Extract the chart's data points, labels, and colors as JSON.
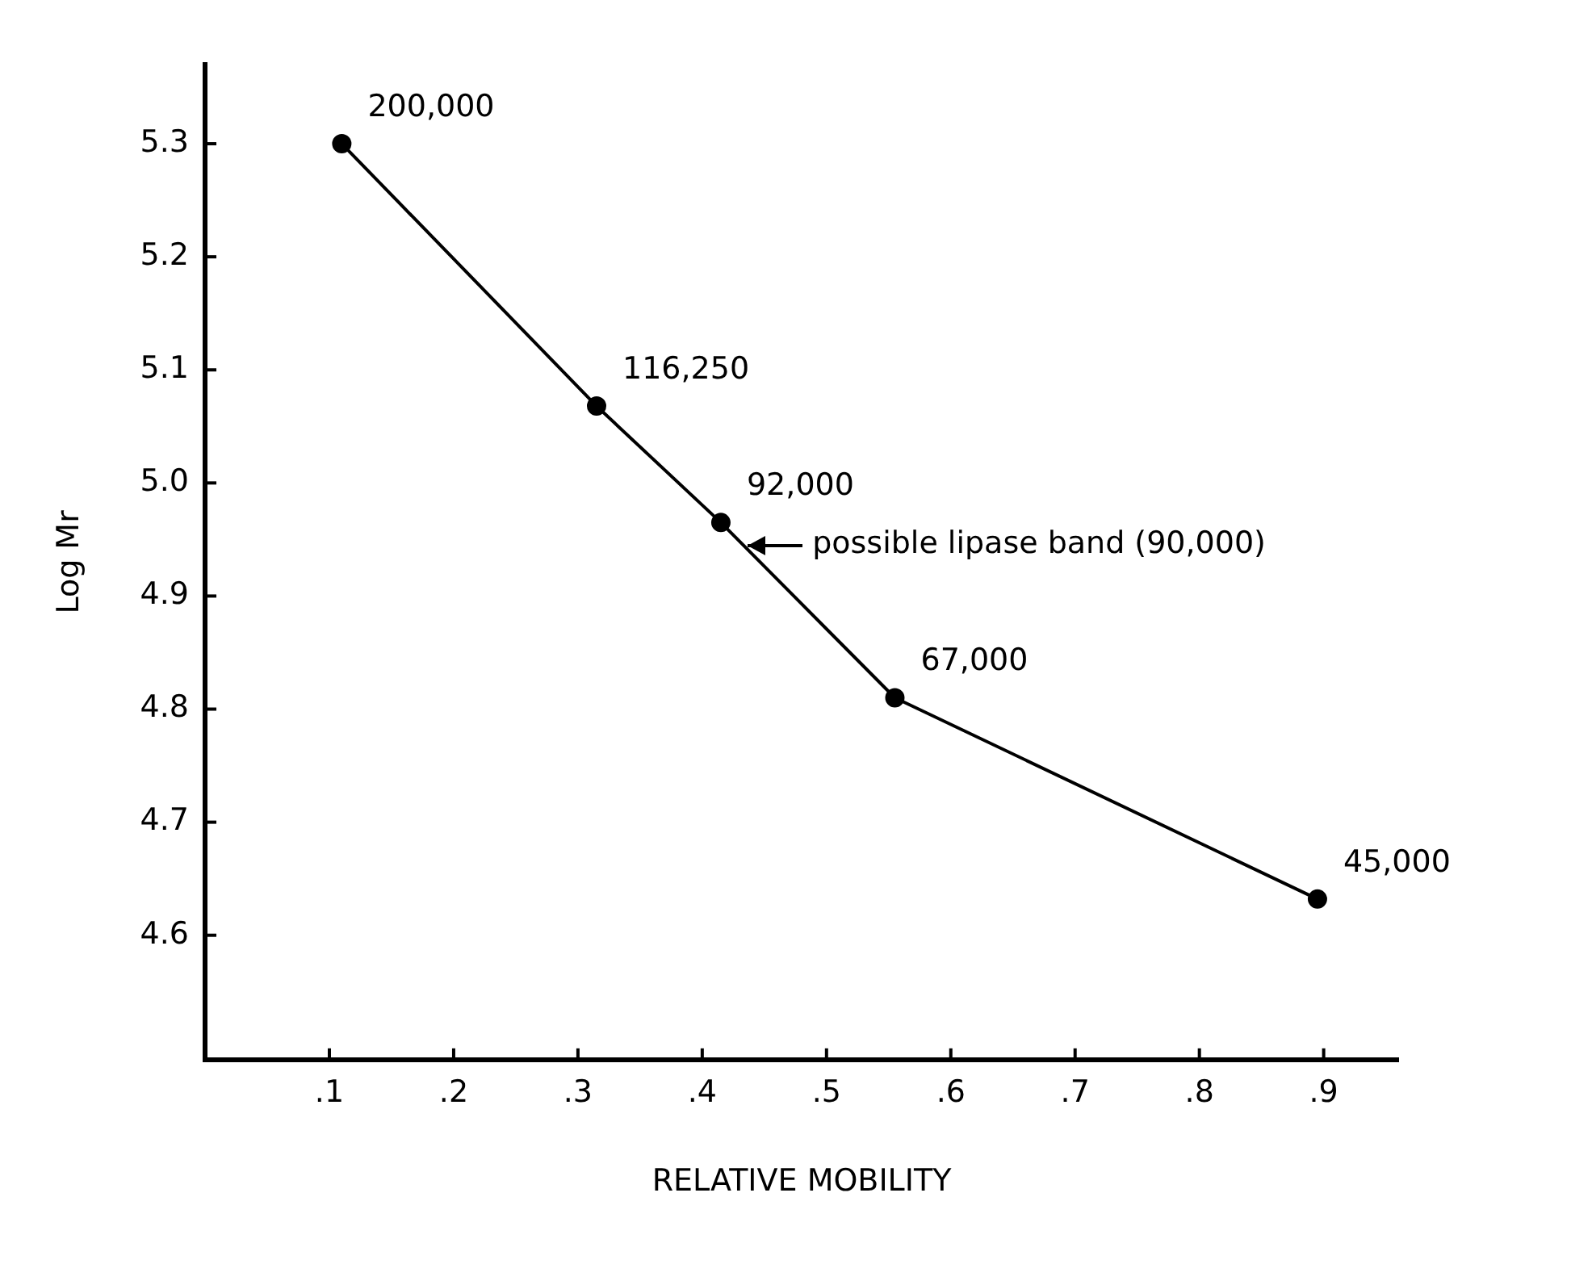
{
  "chart_data": {
    "type": "line",
    "xlabel": "RELATIVE MOBILITY",
    "ylabel": "Log Mr",
    "x": [
      0.11,
      0.315,
      0.415,
      0.555,
      0.895
    ],
    "series": [
      {
        "color": "#000000",
        "values": [
          5.3,
          5.068,
          4.965,
          4.81,
          4.632
        ]
      }
    ],
    "xlim": [
      0,
      0.96
    ],
    "ylim": [
      4.49,
      5.37
    ],
    "xticks": [
      {
        "value": 0.1,
        "label": ".1"
      },
      {
        "value": 0.2,
        "label": ".2"
      },
      {
        "value": 0.3,
        "label": ".3"
      },
      {
        "value": 0.4,
        "label": ".4"
      },
      {
        "value": 0.5,
        "label": ".5"
      },
      {
        "value": 0.6,
        "label": ".6"
      },
      {
        "value": 0.7,
        "label": ".7"
      },
      {
        "value": 0.8,
        "label": ".8"
      },
      {
        "value": 0.9,
        "label": ".9"
      }
    ],
    "yticks": [
      4.6,
      4.7,
      4.8,
      4.9,
      {
        "value": 5.0,
        "label": "5.0"
      },
      5.1,
      5.2,
      5.3
    ],
    "annotations": [
      {
        "text": "200,000",
        "x": 0.11,
        "y": 5.3
      },
      {
        "text": "116,250",
        "x": 0.315,
        "y": 5.068
      },
      {
        "text": "92,000",
        "x": 0.415,
        "y": 4.965
      },
      {
        "text": "possible lipase band (90,000)",
        "x": 0.434,
        "y": 4.945
      },
      {
        "text": "67,000",
        "x": 0.555,
        "y": 4.81
      },
      {
        "text": "45,000",
        "x": 0.895,
        "y": 4.632
      }
    ],
    "grid": false,
    "legend": false,
    "marker": "circle",
    "line_style": "solid"
  }
}
